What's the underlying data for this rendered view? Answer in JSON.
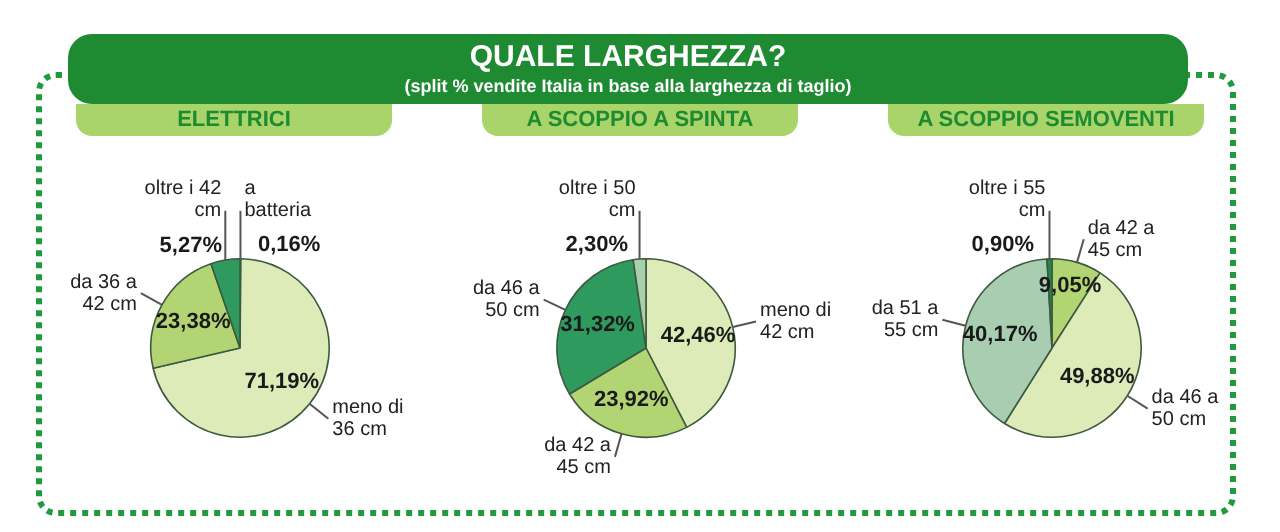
{
  "chart_data": [
    {
      "type": "pie",
      "title": "ELETTRICI",
      "annotations": [
        "QUALE LARGHEZZA?",
        "(split % vendite Italia in base alla larghezza di taglio)"
      ],
      "categories": [
        "a batteria",
        "meno di 36 cm",
        "da 36 a 42 cm",
        "oltre i 42 cm"
      ],
      "values": [
        0.16,
        71.19,
        23.38,
        5.27
      ],
      "value_labels": [
        "0,16%",
        "71,19%",
        "23,38%",
        "5,27%"
      ],
      "colors": [
        "#5e8c6e",
        "#dcebb8",
        "#b3d473",
        "#2e9a5e"
      ]
    },
    {
      "type": "pie",
      "title": "A SCOPPIO A SPINTA",
      "categories": [
        "meno di 42 cm",
        "da 42 a 45 cm",
        "da 46 a 50 cm",
        "oltre i 50 cm"
      ],
      "values": [
        42.46,
        23.92,
        31.32,
        2.3
      ],
      "value_labels": [
        "42,46%",
        "23,92%",
        "31,32%",
        "2,30%"
      ],
      "colors": [
        "#dcebb8",
        "#b3d473",
        "#2e9a5e",
        "#a8cfae"
      ]
    },
    {
      "type": "pie",
      "title": "A SCOPPIO SEMOVENTI",
      "categories": [
        "da 42 a 45 cm",
        "da 46 a 50 cm",
        "da 51 a 55 cm",
        "oltre i 55 cm"
      ],
      "values": [
        9.05,
        49.88,
        40.17,
        0.9
      ],
      "value_labels": [
        "9,05%",
        "49,88%",
        "40,17%",
        "0,90%"
      ],
      "colors": [
        "#b3d473",
        "#dcebb8",
        "#a9cdb0",
        "#1f8a4c"
      ]
    }
  ]
}
